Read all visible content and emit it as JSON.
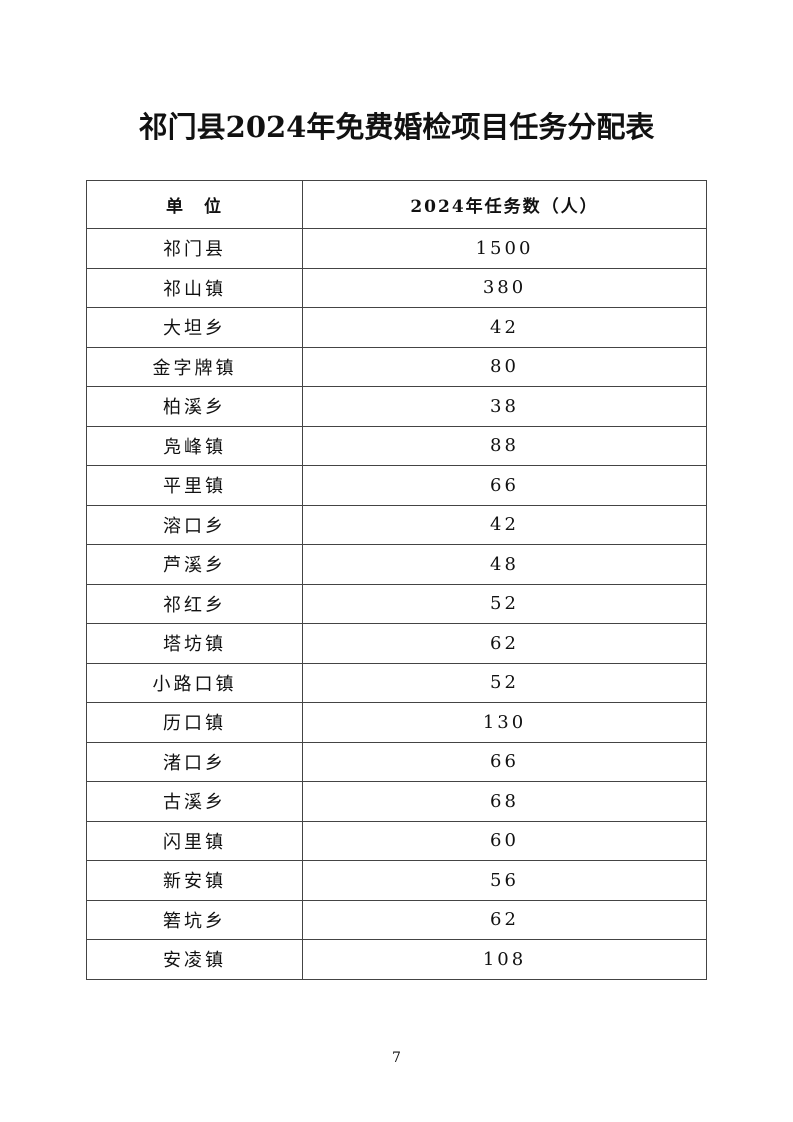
{
  "title": "祁门县2024年免费婚检项目任务分配表",
  "table": {
    "headers": [
      "单　位",
      "2024年任务数（人）"
    ],
    "rows": [
      [
        "祁门县",
        "1500"
      ],
      [
        "祁山镇",
        "380"
      ],
      [
        "大坦乡",
        "42"
      ],
      [
        "金字牌镇",
        "80"
      ],
      [
        "柏溪乡",
        "38"
      ],
      [
        "凫峰镇",
        "88"
      ],
      [
        "平里镇",
        "66"
      ],
      [
        "溶口乡",
        "42"
      ],
      [
        "芦溪乡",
        "48"
      ],
      [
        "祁红乡",
        "52"
      ],
      [
        "塔坊镇",
        "62"
      ],
      [
        "小路口镇",
        "52"
      ],
      [
        "历口镇",
        "130"
      ],
      [
        "渚口乡",
        "66"
      ],
      [
        "古溪乡",
        "68"
      ],
      [
        "闪里镇",
        "60"
      ],
      [
        "新安镇",
        "56"
      ],
      [
        "箬坑乡",
        "62"
      ],
      [
        "安凌镇",
        "108"
      ]
    ]
  },
  "page_number": "7"
}
